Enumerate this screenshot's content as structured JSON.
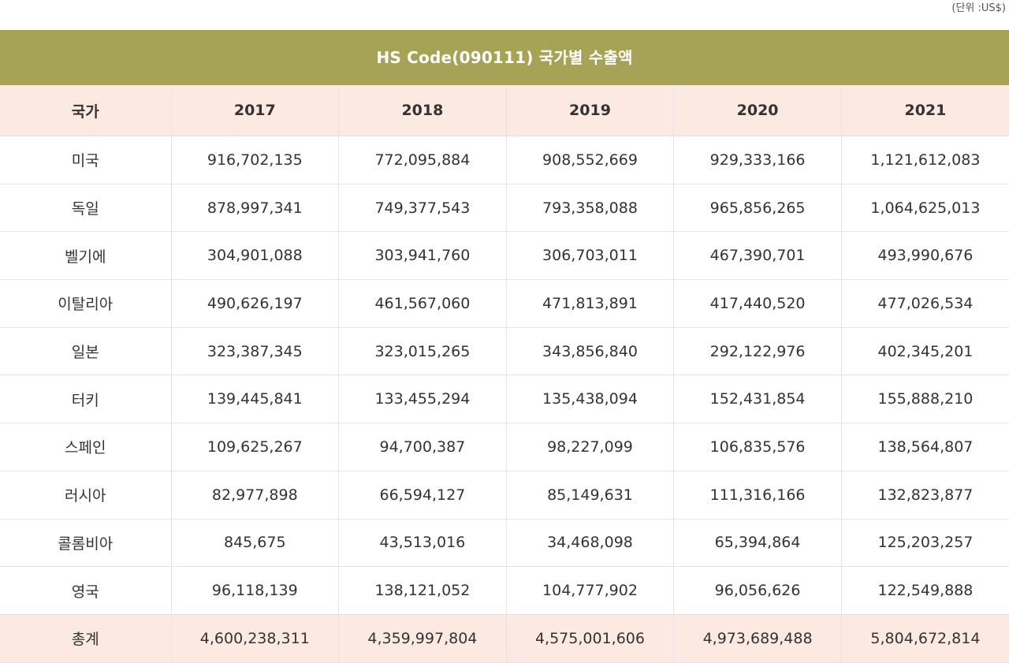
{
  "unit_note": "(단위 :US$)",
  "title": "HS Code(090111) 국가별 수출액",
  "header": {
    "country": "국가",
    "years": [
      "2017",
      "2018",
      "2019",
      "2020",
      "2021"
    ]
  },
  "rows": [
    {
      "country": "미국",
      "values": [
        "916,702,135",
        "772,095,884",
        "908,552,669",
        "929,333,166",
        "1,121,612,083"
      ]
    },
    {
      "country": "독일",
      "values": [
        "878,997,341",
        "749,377,543",
        "793,358,088",
        "965,856,265",
        "1,064,625,013"
      ]
    },
    {
      "country": "벨기에",
      "values": [
        "304,901,088",
        "303,941,760",
        "306,703,011",
        "467,390,701",
        "493,990,676"
      ]
    },
    {
      "country": "이탈리아",
      "values": [
        "490,626,197",
        "461,567,060",
        "471,813,891",
        "417,440,520",
        "477,026,534"
      ]
    },
    {
      "country": "일본",
      "values": [
        "323,387,345",
        "323,015,265",
        "343,856,840",
        "292,122,976",
        "402,345,201"
      ]
    },
    {
      "country": "터키",
      "values": [
        "139,445,841",
        "133,455,294",
        "135,438,094",
        "152,431,854",
        "155,888,210"
      ]
    },
    {
      "country": "스페인",
      "values": [
        "109,625,267",
        "94,700,387",
        "98,227,099",
        "106,835,576",
        "138,564,807"
      ]
    },
    {
      "country": "러시아",
      "values": [
        "82,977,898",
        "66,594,127",
        "85,149,631",
        "111,316,166",
        "132,823,877"
      ]
    },
    {
      "country": "콜롬비아",
      "values": [
        "845,675",
        "43,513,016",
        "34,468,098",
        "65,394,864",
        "125,203,257"
      ]
    },
    {
      "country": "영국",
      "values": [
        "96,118,139",
        "138,121,052",
        "104,777,902",
        "96,056,626",
        "122,549,888"
      ]
    }
  ],
  "total": {
    "country": "총계",
    "values": [
      "4,600,238,311",
      "4,359,997,804",
      "4,575,001,606",
      "4,973,689,488",
      "5,804,672,814"
    ]
  },
  "colors": {
    "title_bg": "#a6a256",
    "header_bg": "#fce9e1",
    "total_bg": "#fce9e1"
  }
}
